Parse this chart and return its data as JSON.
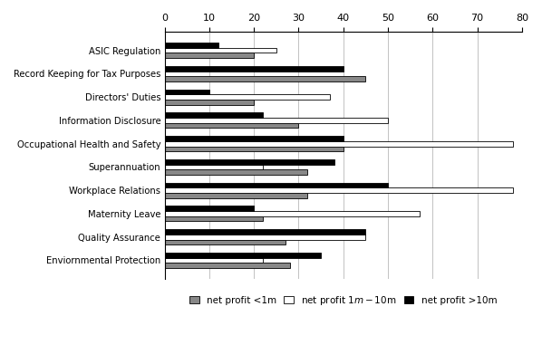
{
  "categories": [
    "ASIC Regulation",
    "Record Keeping for Tax Purposes",
    "Directors' Duties",
    "Information Disclosure",
    "Occupational Health and Safety",
    "Superannuation",
    "Workplace Relations",
    "Maternity Leave",
    "Quality Assurance",
    "Enviornmental Protection"
  ],
  "series_order": [
    "net profit <1m",
    "net profit $1m-$10m",
    "net profit >10m"
  ],
  "series": {
    "net profit <1m": [
      20,
      45,
      20,
      30,
      40,
      32,
      32,
      22,
      27,
      28
    ],
    "net profit $1m-$10m": [
      25,
      0,
      37,
      50,
      78,
      22,
      78,
      57,
      45,
      22
    ],
    "net profit >10m": [
      12,
      40,
      10,
      22,
      40,
      38,
      50,
      20,
      45,
      35
    ]
  },
  "colors": {
    "net profit <1m": "#888888",
    "net profit $1m-$10m": "#ffffff",
    "net profit >10m": "#000000"
  },
  "edgecolor": "#000000",
  "xlim": [
    0,
    80
  ],
  "xticks": [
    0,
    10,
    20,
    30,
    40,
    50,
    60,
    70,
    80
  ],
  "background_color": "#ffffff",
  "bar_height": 0.22,
  "legend_labels": [
    "net profit <1m",
    "net profit $1m-$10m",
    "net profit >10m"
  ],
  "legend_colors": [
    "#888888",
    "#ffffff",
    "#000000"
  ],
  "figsize": [
    5.98,
    3.81
  ],
  "dpi": 100
}
